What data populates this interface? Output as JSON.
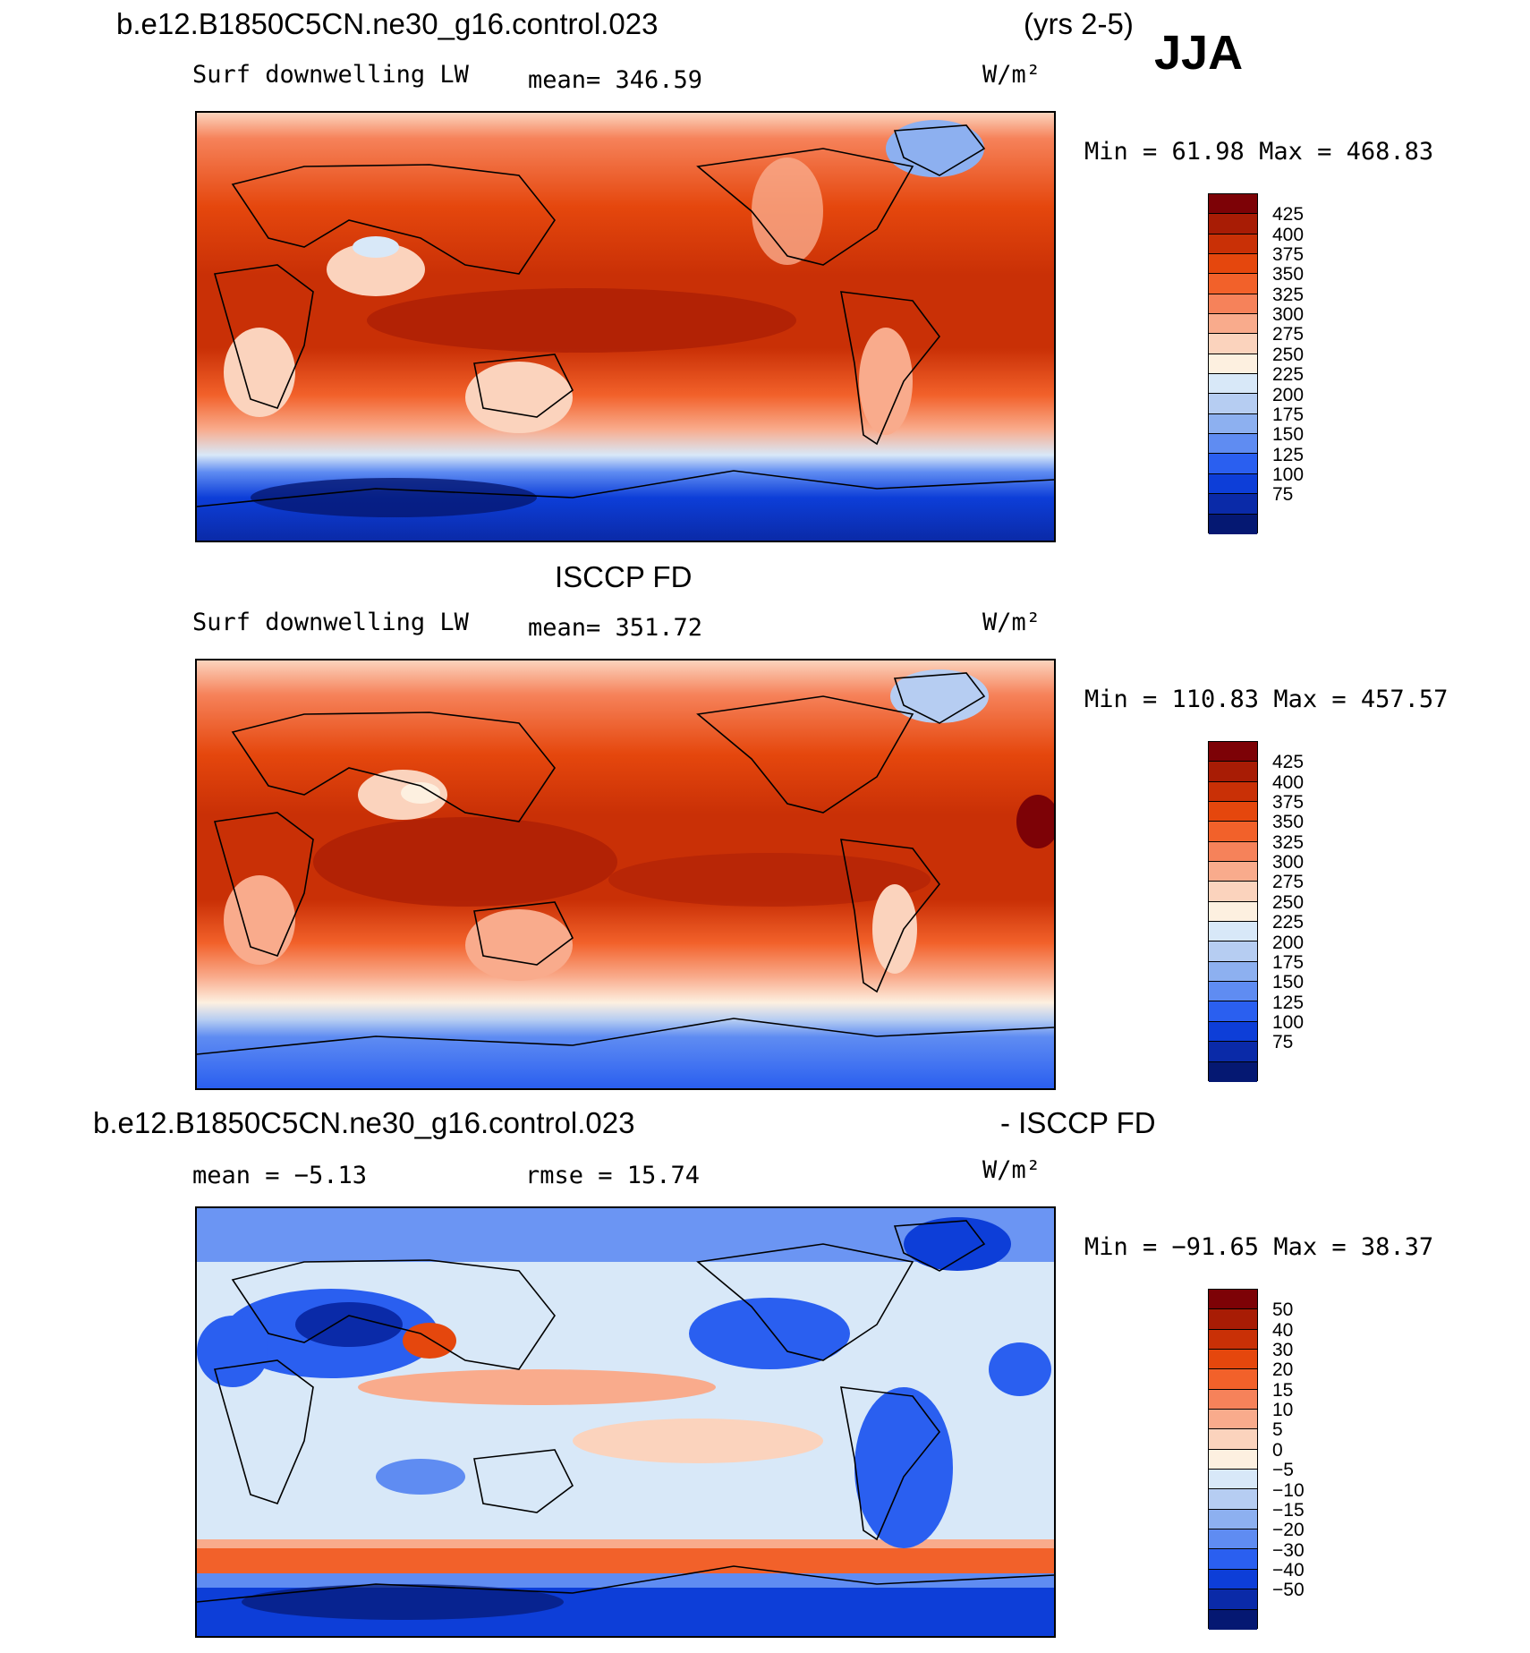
{
  "header": {
    "case_title": "b.e12.B1850C5CN.ne30_g16.control.023",
    "years": "(yrs 2-5)",
    "season": "JJA"
  },
  "panels": [
    {
      "title": "",
      "variable": "Surf downwelling LW",
      "mean_text": "mean=  346.59",
      "units": "W/m²",
      "minmax_text": "Min =   61.98 Max = 468.83",
      "colorbar_labels": [
        "425",
        "400",
        "375",
        "350",
        "325",
        "300",
        "275",
        "250",
        "225",
        "200",
        "175",
        "150",
        "125",
        "100",
        "75"
      ],
      "colorbar_colors": [
        "#7d0206",
        "#a81c05",
        "#c93006",
        "#e5470d",
        "#f2612a",
        "#f6825a",
        "#f9ab8c",
        "#fbd3bd",
        "#fdf0e0",
        "#d8e8f8",
        "#b6cdf2",
        "#8db0f0",
        "#5f8cf2",
        "#2a5ff0",
        "#0d3ed8",
        "#0a2aa8",
        "#051872"
      ],
      "theme": "abs"
    },
    {
      "title": "ISCCP FD",
      "variable": "Surf downwelling LW",
      "mean_text": "mean=  351.72",
      "units": "W/m²",
      "minmax_text": "Min = 110.83 Max = 457.57",
      "colorbar_labels": [
        "425",
        "400",
        "375",
        "350",
        "325",
        "300",
        "275",
        "250",
        "225",
        "200",
        "175",
        "150",
        "125",
        "100",
        "75"
      ],
      "colorbar_colors": [
        "#7d0206",
        "#a81c05",
        "#c93006",
        "#e5470d",
        "#f2612a",
        "#f6825a",
        "#f9ab8c",
        "#fbd3bd",
        "#fdf0e0",
        "#d8e8f8",
        "#b6cdf2",
        "#8db0f0",
        "#5f8cf2",
        "#2a5ff0",
        "#0d3ed8",
        "#0a2aa8",
        "#051872"
      ],
      "theme": "abs"
    },
    {
      "title_left": "b.e12.B1850C5CN.ne30_g16.control.023",
      "title_right": "- ISCCP FD",
      "mean_text": "mean =   −5.13",
      "rmse_text": "rmse =   15.74",
      "units": "W/m²",
      "minmax_text": "Min = −91.65 Max =  38.37",
      "colorbar_labels": [
        "50",
        "40",
        "30",
        "20",
        "15",
        "10",
        "5",
        "0",
        "−5",
        "−10",
        "−15",
        "−20",
        "−30",
        "−40",
        "−50"
      ],
      "colorbar_colors": [
        "#7d0206",
        "#a81c05",
        "#c93006",
        "#e5470d",
        "#f2612a",
        "#f6825a",
        "#f9ab8c",
        "#fbd3bd",
        "#fdf0e0",
        "#d8e8f8",
        "#b6cdf2",
        "#8db0f0",
        "#5f8cf2",
        "#2a5ff0",
        "#0d3ed8",
        "#0a2aa8",
        "#051872"
      ],
      "theme": "diff"
    }
  ]
}
